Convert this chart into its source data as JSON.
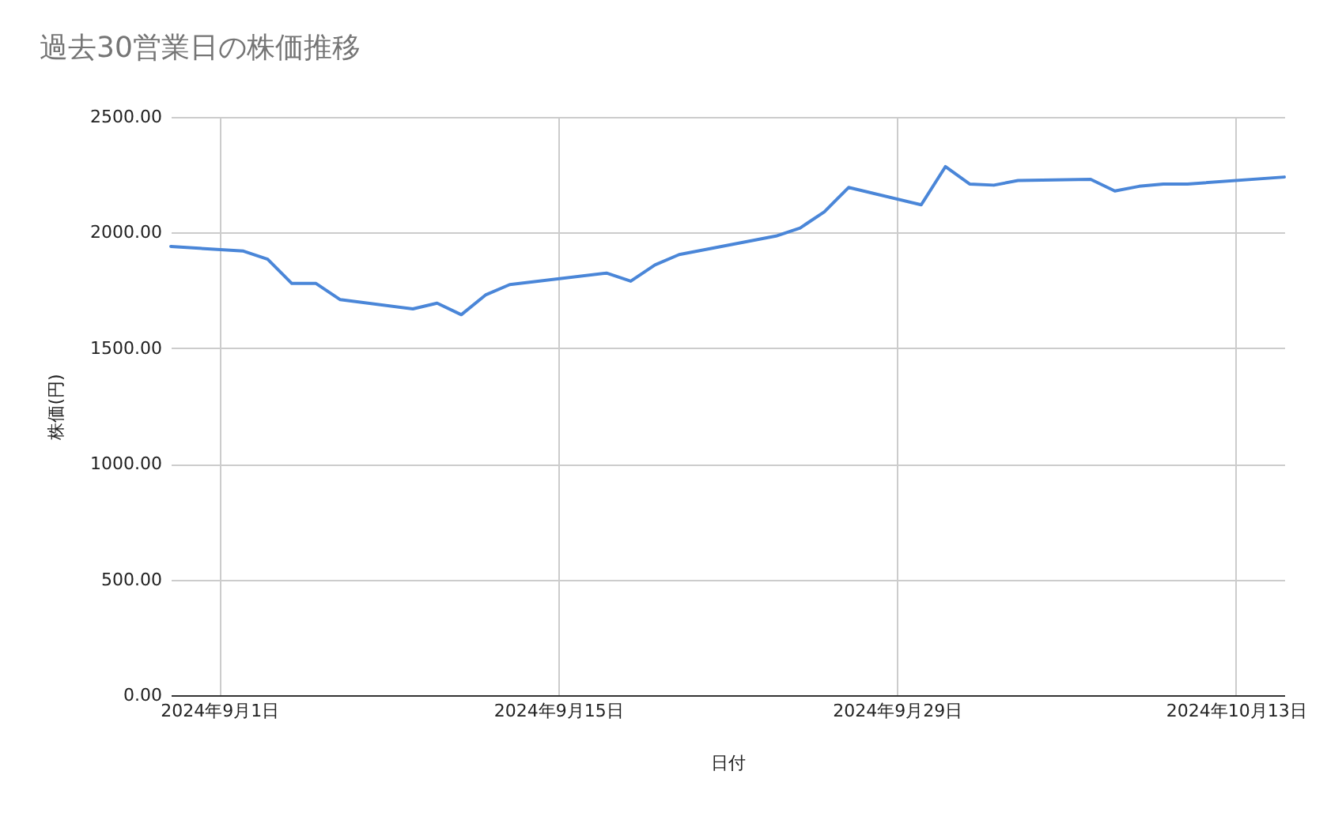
{
  "chart_data": {
    "type": "line",
    "title": "過去30営業日の株価推移",
    "xlabel": "日付",
    "ylabel": "株価(円)",
    "x": [
      "2024-08-30",
      "2024-09-02",
      "2024-09-03",
      "2024-09-04",
      "2024-09-05",
      "2024-09-06",
      "2024-09-09",
      "2024-09-10",
      "2024-09-11",
      "2024-09-12",
      "2024-09-13",
      "2024-09-17",
      "2024-09-18",
      "2024-09-19",
      "2024-09-20",
      "2024-09-24",
      "2024-09-25",
      "2024-09-26",
      "2024-09-27",
      "2024-09-30",
      "2024-10-01",
      "2024-10-02",
      "2024-10-03",
      "2024-10-04",
      "2024-10-07",
      "2024-10-08",
      "2024-10-09",
      "2024-10-10",
      "2024-10-11",
      "2024-10-15"
    ],
    "series": [
      {
        "color": "#4a86d8",
        "values": [
          1940,
          1920,
          1885,
          1780,
          1780,
          1710,
          1670,
          1695,
          1645,
          1730,
          1775,
          1825,
          1790,
          1860,
          1905,
          1985,
          2020,
          2090,
          2195,
          2120,
          2285,
          2210,
          2205,
          2225,
          2230,
          2180,
          2200,
          2210,
          2210,
          2240
        ]
      }
    ],
    "xlim": [
      "2024-08-30",
      "2024-10-15"
    ],
    "xticks": [
      {
        "value": "2024-09-01",
        "label": "2024年9月1日"
      },
      {
        "value": "2024-09-15",
        "label": "2024年9月15日"
      },
      {
        "value": "2024-09-29",
        "label": "2024年9月29日"
      },
      {
        "value": "2024-10-13",
        "label": "2024年10月13日"
      }
    ],
    "ylim": [
      0,
      2500
    ],
    "yticks": [
      {
        "value": 0,
        "label": "0.00"
      },
      {
        "value": 500,
        "label": "500.00"
      },
      {
        "value": 1000,
        "label": "1000.00"
      },
      {
        "value": 1500,
        "label": "1500.00"
      },
      {
        "value": 2000,
        "label": "2000.00"
      },
      {
        "value": 2500,
        "label": "2500.00"
      }
    ],
    "grid": true,
    "legend": false,
    "line_style": "solid",
    "marker": "none"
  }
}
